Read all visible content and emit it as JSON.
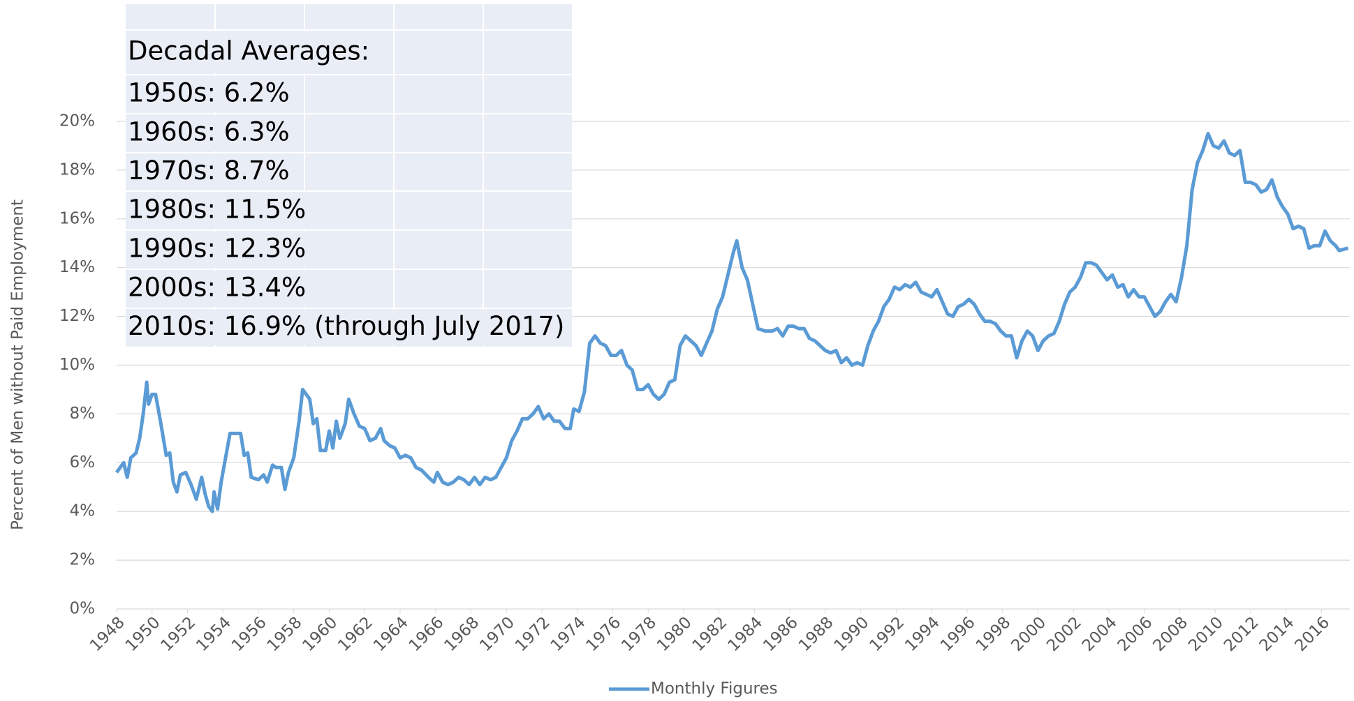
{
  "chart_data": {
    "type": "line",
    "ylabel": "Percent of Men without Paid Employment",
    "annotations": [
      "Decadal Averages:",
      "1950s: 6.2%",
      "1960s: 6.3%",
      "1970s: 8.7%",
      "1980s: 11.5%",
      "1990s: 12.3%",
      "2000s: 13.4%",
      "2010s: 16.9%  (through July 2017)"
    ],
    "xlim": [
      1948,
      2017.6
    ],
    "xticks": [
      1948,
      1950,
      1952,
      1954,
      1956,
      1958,
      1960,
      1962,
      1964,
      1966,
      1968,
      1970,
      1972,
      1974,
      1976,
      1978,
      1980,
      1982,
      1984,
      1986,
      1988,
      1990,
      1992,
      1994,
      1996,
      1998,
      2000,
      2002,
      2004,
      2006,
      2008,
      2010,
      2012,
      2014,
      2016
    ],
    "ylim": [
      0,
      20
    ],
    "yticks": [
      {
        "value": 0,
        "label": "0%"
      },
      {
        "value": 2,
        "label": "2%"
      },
      {
        "value": 4,
        "label": "4%"
      },
      {
        "value": 6,
        "label": "6%"
      },
      {
        "value": 8,
        "label": "8%"
      },
      {
        "value": 10,
        "label": "10%"
      },
      {
        "value": 12,
        "label": "12%"
      },
      {
        "value": 14,
        "label": "14%"
      },
      {
        "value": 16,
        "label": "16%"
      },
      {
        "value": 18,
        "label": "18%"
      },
      {
        "value": 20,
        "label": "20%"
      }
    ],
    "grid": true,
    "legend": "bottom",
    "x": [
      1948.0,
      1948.4,
      1948.6,
      1948.8,
      1949.1,
      1949.3,
      1949.5,
      1949.7,
      1949.8,
      1950.0,
      1950.2,
      1950.5,
      1950.8,
      1951.0,
      1951.2,
      1951.4,
      1951.6,
      1951.9,
      1952.2,
      1952.5,
      1952.8,
      1953.0,
      1953.2,
      1953.4,
      1953.5,
      1953.7,
      1953.9,
      1954.2,
      1954.4,
      1954.7,
      1955.0,
      1955.2,
      1955.4,
      1955.6,
      1956.0,
      1956.3,
      1956.5,
      1956.8,
      1957.0,
      1957.3,
      1957.5,
      1957.7,
      1958.0,
      1958.3,
      1958.5,
      1958.7,
      1958.9,
      1959.1,
      1959.3,
      1959.5,
      1959.8,
      1960.0,
      1960.2,
      1960.4,
      1960.6,
      1960.9,
      1961.1,
      1961.4,
      1961.7,
      1962.0,
      1962.3,
      1962.6,
      1962.9,
      1963.1,
      1963.4,
      1963.7,
      1964.0,
      1964.3,
      1964.6,
      1964.9,
      1965.2,
      1965.6,
      1965.9,
      1966.1,
      1966.4,
      1966.7,
      1967.0,
      1967.3,
      1967.6,
      1967.9,
      1968.2,
      1968.5,
      1968.8,
      1969.1,
      1969.4,
      1969.7,
      1970.0,
      1970.3,
      1970.6,
      1970.9,
      1971.2,
      1971.5,
      1971.8,
      1972.1,
      1972.4,
      1972.7,
      1973.0,
      1973.3,
      1973.6,
      1973.8,
      1974.1,
      1974.4,
      1974.7,
      1975.0,
      1975.3,
      1975.6,
      1975.9,
      1976.2,
      1976.5,
      1976.8,
      1977.1,
      1977.4,
      1977.7,
      1978.0,
      1978.3,
      1978.6,
      1978.9,
      1979.2,
      1979.5,
      1979.8,
      1980.1,
      1980.4,
      1980.7,
      1981.0,
      1981.3,
      1981.6,
      1981.9,
      1982.2,
      1982.5,
      1982.8,
      1983.0,
      1983.3,
      1983.6,
      1983.9,
      1984.2,
      1984.6,
      1985.0,
      1985.3,
      1985.6,
      1985.9,
      1986.2,
      1986.5,
      1986.8,
      1987.1,
      1987.4,
      1987.7,
      1988.0,
      1988.3,
      1988.6,
      1988.9,
      1989.2,
      1989.5,
      1989.8,
      1990.1,
      1990.4,
      1990.7,
      1991.0,
      1991.3,
      1991.6,
      1991.9,
      1992.2,
      1992.5,
      1992.8,
      1993.1,
      1993.4,
      1993.7,
      1994.0,
      1994.3,
      1994.6,
      1994.9,
      1995.2,
      1995.5,
      1995.8,
      1996.1,
      1996.4,
      1996.7,
      1997.0,
      1997.3,
      1997.6,
      1997.9,
      1998.2,
      1998.5,
      1998.8,
      1999.1,
      1999.4,
      1999.7,
      2000.0,
      2000.3,
      2000.6,
      2000.9,
      2001.2,
      2001.5,
      2001.8,
      2002.1,
      2002.4,
      2002.7,
      2003.0,
      2003.3,
      2003.6,
      2003.9,
      2004.2,
      2004.5,
      2004.8,
      2005.1,
      2005.4,
      2005.7,
      2006.0,
      2006.3,
      2006.6,
      2006.9,
      2007.2,
      2007.5,
      2007.8,
      2008.1,
      2008.4,
      2008.7,
      2009.0,
      2009.3,
      2009.6,
      2009.9,
      2010.2,
      2010.5,
      2010.8,
      2011.1,
      2011.4,
      2011.7,
      2012.0,
      2012.3,
      2012.6,
      2012.9,
      2013.2,
      2013.5,
      2013.8,
      2014.1,
      2014.4,
      2014.7,
      2015.0,
      2015.3,
      2015.6,
      2015.9,
      2016.2,
      2016.5,
      2016.8,
      2017.0,
      2017.5
    ],
    "series": [
      {
        "name": "Monthly Figures",
        "color": "#5b9bd5",
        "values": [
          5.6,
          6.0,
          5.4,
          6.2,
          6.4,
          7.0,
          8.0,
          9.3,
          8.4,
          8.8,
          8.8,
          7.6,
          6.3,
          6.4,
          5.2,
          4.8,
          5.5,
          5.6,
          5.1,
          4.5,
          5.4,
          4.7,
          4.2,
          4.0,
          4.8,
          4.1,
          5.2,
          6.4,
          7.2,
          7.2,
          7.2,
          6.3,
          6.4,
          5.4,
          5.3,
          5.5,
          5.2,
          5.9,
          5.8,
          5.8,
          4.9,
          5.6,
          6.2,
          7.7,
          9.0,
          8.8,
          8.6,
          7.6,
          7.8,
          6.5,
          6.5,
          7.3,
          6.6,
          7.7,
          7.0,
          7.6,
          8.6,
          8.0,
          7.5,
          7.4,
          6.9,
          7.0,
          7.4,
          6.9,
          6.7,
          6.6,
          6.2,
          6.3,
          6.2,
          5.8,
          5.7,
          5.4,
          5.2,
          5.6,
          5.2,
          5.1,
          5.2,
          5.4,
          5.3,
          5.1,
          5.4,
          5.1,
          5.4,
          5.3,
          5.4,
          5.8,
          6.2,
          6.9,
          7.3,
          7.8,
          7.8,
          8.0,
          8.3,
          7.8,
          8.0,
          7.7,
          7.7,
          7.4,
          7.4,
          8.2,
          8.1,
          8.9,
          10.9,
          11.2,
          10.9,
          10.8,
          10.4,
          10.4,
          10.6,
          10.0,
          9.8,
          9.0,
          9.0,
          9.2,
          8.8,
          8.6,
          8.8,
          9.3,
          9.4,
          10.8,
          11.2,
          11.0,
          10.8,
          10.4,
          10.9,
          11.4,
          12.3,
          12.8,
          13.7,
          14.6,
          15.1,
          14.0,
          13.5,
          12.5,
          11.5,
          11.4,
          11.4,
          11.5,
          11.2,
          11.6,
          11.6,
          11.5,
          11.5,
          11.1,
          11.0,
          10.8,
          10.6,
          10.5,
          10.6,
          10.1,
          10.3,
          10.0,
          10.1,
          10.0,
          10.8,
          11.4,
          11.8,
          12.4,
          12.7,
          13.2,
          13.1,
          13.3,
          13.2,
          13.4,
          13.0,
          12.9,
          12.8,
          13.1,
          12.6,
          12.1,
          12.0,
          12.4,
          12.5,
          12.7,
          12.5,
          12.1,
          11.8,
          11.8,
          11.7,
          11.4,
          11.2,
          11.2,
          10.3,
          11.0,
          11.4,
          11.2,
          10.6,
          11.0,
          11.2,
          11.3,
          11.8,
          12.5,
          13.0,
          13.2,
          13.6,
          14.2,
          14.2,
          14.1,
          13.8,
          13.5,
          13.7,
          13.2,
          13.3,
          12.8,
          13.1,
          12.8,
          12.8,
          12.4,
          12.0,
          12.2,
          12.6,
          12.9,
          12.6,
          13.6,
          14.9,
          17.2,
          18.3,
          18.8,
          19.5,
          19.0,
          18.9,
          19.2,
          18.7,
          18.6,
          18.8,
          17.5,
          17.5,
          17.4,
          17.1,
          17.2,
          17.6,
          16.9,
          16.5,
          16.2,
          15.6,
          15.7,
          15.6,
          14.8,
          14.9,
          14.9,
          15.5,
          15.1,
          14.9,
          14.7,
          14.8
        ]
      }
    ]
  }
}
